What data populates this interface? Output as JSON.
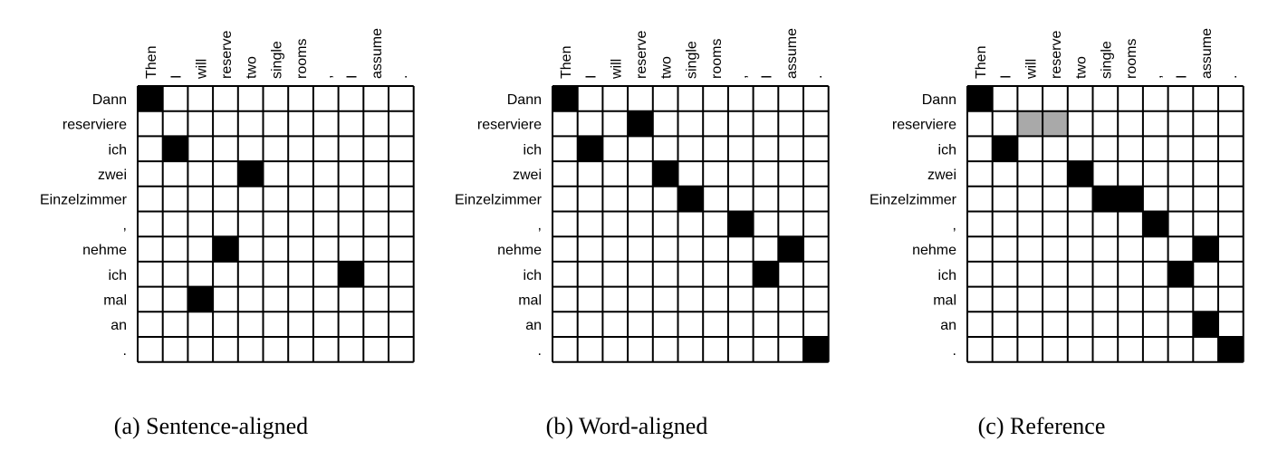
{
  "source_words": [
    "Dann",
    "reserviere",
    "ich",
    "zwei",
    "Einzelzimmer",
    ",",
    "nehme",
    "ich",
    "mal",
    "an",
    "."
  ],
  "target_words": [
    "Then",
    "I",
    "will",
    "reserve",
    "two",
    "single",
    "rooms",
    ",",
    "I",
    "assume",
    "."
  ],
  "colors": {
    "black": "#000000",
    "gray": "#a9a9a9",
    "white": "#ffffff"
  },
  "panels": [
    {
      "caption": "(a) Sentence-aligned",
      "cells": [
        {
          "row": 0,
          "col": 0,
          "fill": "black"
        },
        {
          "row": 2,
          "col": 1,
          "fill": "black"
        },
        {
          "row": 3,
          "col": 4,
          "fill": "black"
        },
        {
          "row": 6,
          "col": 3,
          "fill": "black"
        },
        {
          "row": 7,
          "col": 8,
          "fill": "black"
        },
        {
          "row": 8,
          "col": 2,
          "fill": "black"
        }
      ]
    },
    {
      "caption": "(b) Word-aligned",
      "cells": [
        {
          "row": 0,
          "col": 0,
          "fill": "black"
        },
        {
          "row": 1,
          "col": 3,
          "fill": "black"
        },
        {
          "row": 2,
          "col": 1,
          "fill": "black"
        },
        {
          "row": 3,
          "col": 4,
          "fill": "black"
        },
        {
          "row": 4,
          "col": 5,
          "fill": "black"
        },
        {
          "row": 5,
          "col": 7,
          "fill": "black"
        },
        {
          "row": 6,
          "col": 9,
          "fill": "black"
        },
        {
          "row": 7,
          "col": 8,
          "fill": "black"
        },
        {
          "row": 10,
          "col": 10,
          "fill": "black"
        }
      ]
    },
    {
      "caption": "(c) Reference",
      "cells": [
        {
          "row": 0,
          "col": 0,
          "fill": "black"
        },
        {
          "row": 1,
          "col": 2,
          "fill": "gray"
        },
        {
          "row": 1,
          "col": 3,
          "fill": "gray"
        },
        {
          "row": 2,
          "col": 1,
          "fill": "black"
        },
        {
          "row": 3,
          "col": 4,
          "fill": "black"
        },
        {
          "row": 4,
          "col": 5,
          "fill": "black"
        },
        {
          "row": 4,
          "col": 6,
          "fill": "black"
        },
        {
          "row": 5,
          "col": 7,
          "fill": "black"
        },
        {
          "row": 6,
          "col": 9,
          "fill": "black"
        },
        {
          "row": 7,
          "col": 8,
          "fill": "black"
        },
        {
          "row": 9,
          "col": 9,
          "fill": "black"
        },
        {
          "row": 10,
          "col": 10,
          "fill": "black"
        }
      ]
    }
  ]
}
